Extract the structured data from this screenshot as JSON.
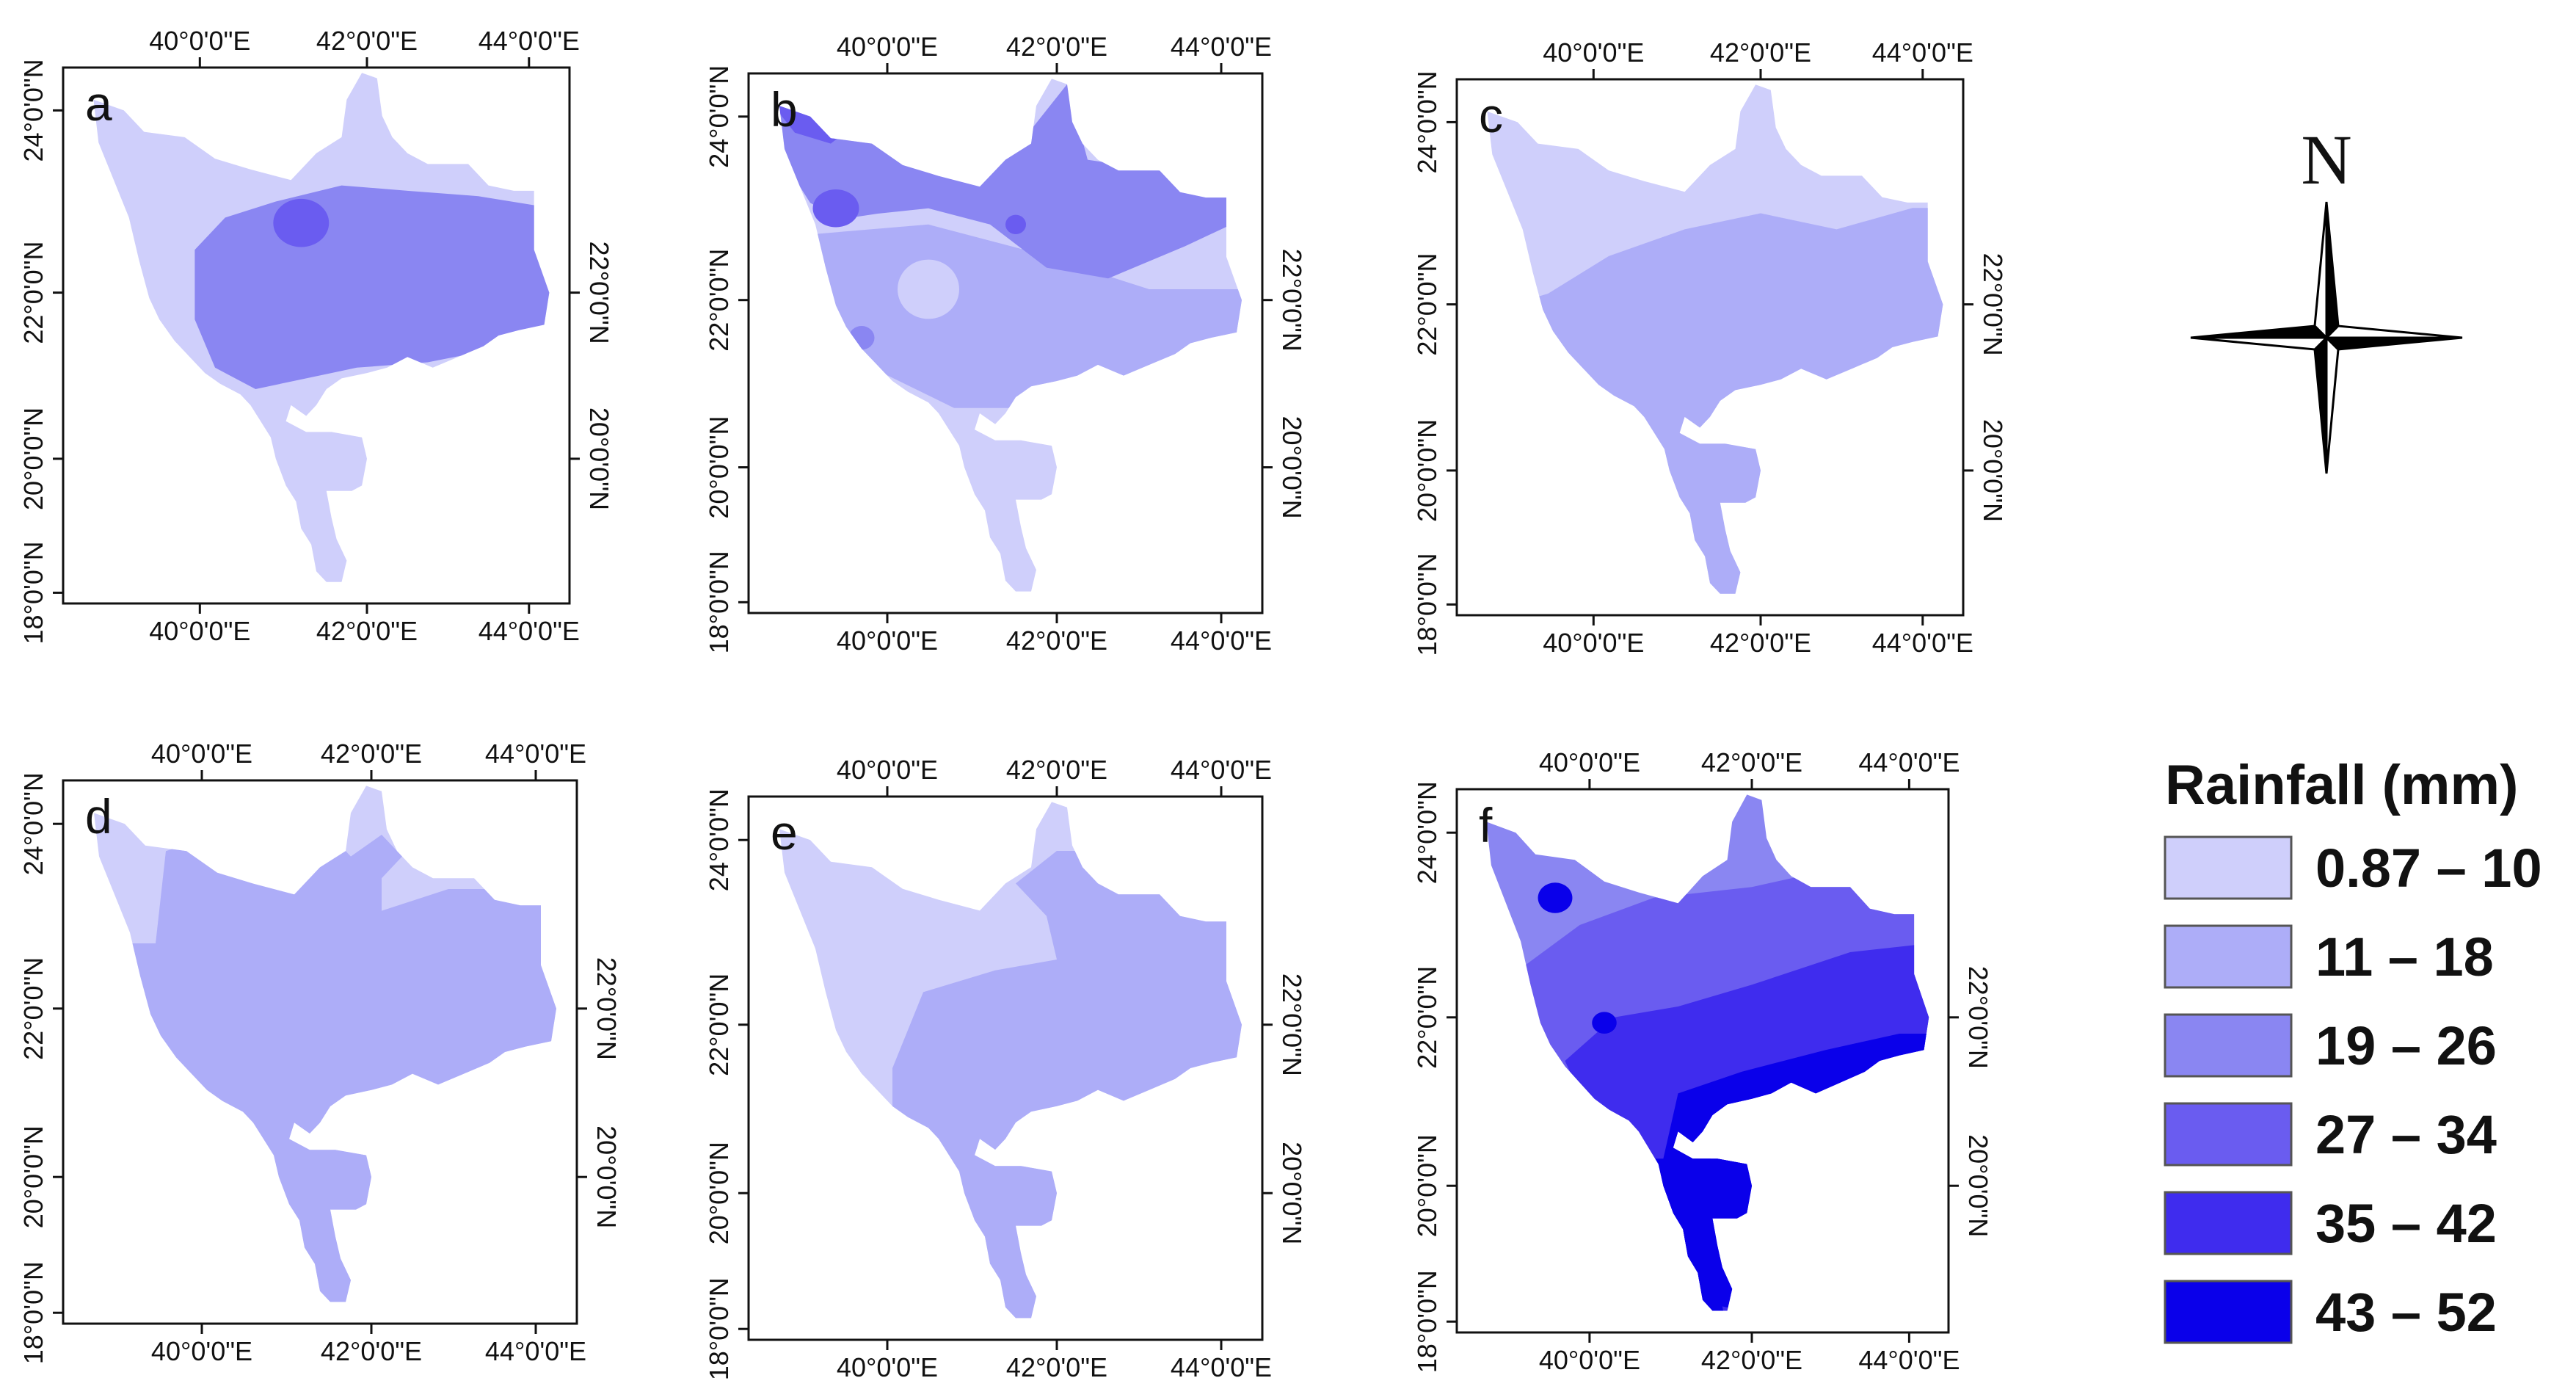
{
  "figure": {
    "description_free": true,
    "panels": [
      {
        "id": "a",
        "label": "a",
        "top_ticks": [
          "40°0'0\"E",
          "42°0'0\"E",
          "44°0'0\"E"
        ],
        "bottom_ticks": [
          "40°0'0\"E",
          "42°0'0\"E",
          "44°0'0\"E"
        ],
        "left_ticks": [
          "24°0'0\"N",
          "22°0'0\"N",
          "20°0'0\"N",
          "18°0'0\"N"
        ],
        "right_ticks": [
          "22°0'0\"N",
          "20°0'0\"N"
        ],
        "class_order": [
          0,
          2,
          3
        ]
      },
      {
        "id": "b",
        "label": "b",
        "top_ticks": [
          "40°0'0\"E",
          "42°0'0\"E",
          "44°0'0\"E"
        ],
        "bottom_ticks": [
          "40°0'0\"E",
          "42°0'0\"E",
          "44°0'0\"E"
        ],
        "left_ticks": [
          "24°0'0\"N",
          "22°0'0\"N",
          "20°0'0\"N",
          "18°0'0\"N"
        ],
        "right_ticks": [
          "22°0'0\"N",
          "20°0'0\"N"
        ],
        "class_order": [
          0,
          1,
          2,
          3
        ]
      },
      {
        "id": "c",
        "label": "c",
        "top_ticks": [
          "40°0'0\"E",
          "42°0'0\"E",
          "44°0'0\"E"
        ],
        "bottom_ticks": [
          "40°0'0\"E",
          "42°0'0\"E",
          "44°0'0\"E"
        ],
        "left_ticks": [
          "24°0'0\"N",
          "22°0'0\"N",
          "20°0'0\"N",
          "18°0'0\"N"
        ],
        "right_ticks": [
          "22°0'0\"N",
          "20°0'0\"N"
        ],
        "class_order": [
          0,
          1
        ]
      },
      {
        "id": "d",
        "label": "d",
        "top_ticks": [
          "40°0'0\"E",
          "42°0'0\"E",
          "44°0'0\"E"
        ],
        "bottom_ticks": [
          "40°0'0\"E",
          "42°0'0\"E",
          "44°0'0\"E"
        ],
        "left_ticks": [
          "24°0'0\"N",
          "22°0'0\"N",
          "20°0'0\"N",
          "18°0'0\"N"
        ],
        "right_ticks": [
          "22°0'0\"N",
          "20°0'0\"N"
        ],
        "class_order": [
          0,
          1
        ]
      },
      {
        "id": "e",
        "label": "e",
        "top_ticks": [
          "40°0'0\"E",
          "42°0'0\"E",
          "44°0'0\"E"
        ],
        "bottom_ticks": [
          "40°0'0\"E",
          "42°0'0\"E",
          "44°0'0\"E"
        ],
        "left_ticks": [
          "24°0'0\"N",
          "22°0'0\"N",
          "20°0'0\"N",
          "18°0'0\"N"
        ],
        "right_ticks": [
          "22°0'0\"N",
          "20°0'0\"N"
        ],
        "class_order": [
          0,
          1
        ]
      },
      {
        "id": "f",
        "label": "f",
        "top_ticks": [
          "40°0'0\"E",
          "42°0'0\"E",
          "44°0'0\"E"
        ],
        "bottom_ticks": [
          "40°0'0\"E",
          "42°0'0\"E",
          "44°0'0\"E"
        ],
        "left_ticks": [
          "24°0'0\"N",
          "22°0'0\"N",
          "20°0'0\"N",
          "18°0'0\"N"
        ],
        "right_ticks": [
          "22°0'0\"N",
          "20°0'0\"N"
        ],
        "class_order": [
          2,
          3,
          4,
          5
        ]
      }
    ],
    "north_arrow": {
      "letter": "N"
    },
    "legend": {
      "title": "Rainfall (mm)",
      "classes": [
        {
          "label": "0.87 – 10",
          "color": "#cfcffb"
        },
        {
          "label": "11 – 18",
          "color": "#adadf8"
        },
        {
          "label": "19 – 26",
          "color": "#8a86f2"
        },
        {
          "label": "27 – 34",
          "color": "#6a5cf0"
        },
        {
          "label": "35 – 42",
          "color": "#3f2cee"
        },
        {
          "label": "43 – 52",
          "color": "#0a00ea"
        }
      ]
    }
  }
}
